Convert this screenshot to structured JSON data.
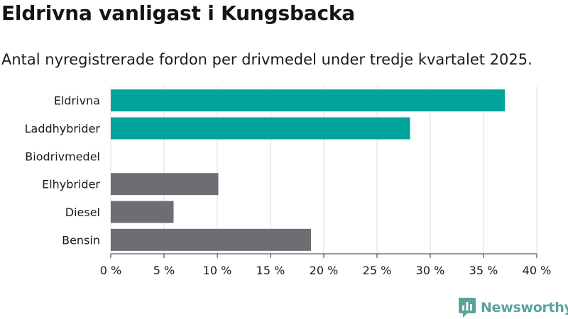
{
  "header": {
    "title": "Eldrivna vanligast i Kungsbacka",
    "subtitle": "Antal nyregistrerade fordon per drivmedel under tredje kvartalet 2025."
  },
  "brand": {
    "name": "Newsworthy",
    "icon": "newsworthy-logo-icon"
  },
  "colors": {
    "electric": "#00a49a",
    "fossil": "#6e6d73",
    "grid": "#dcdcdc",
    "axis": "#333333"
  },
  "chart_data": {
    "type": "bar",
    "orientation": "horizontal",
    "categories": [
      "Eldrivna",
      "Laddhybrider",
      "Biodrivmedel",
      "Elhybrider",
      "Diesel",
      "Bensin"
    ],
    "values": [
      37,
      28.1,
      0,
      10.1,
      5.9,
      18.8
    ],
    "bar_colors": [
      "#00a49a",
      "#00a49a",
      "#00a49a",
      "#6e6d73",
      "#6e6d73",
      "#6e6d73"
    ],
    "xlim": [
      0,
      40
    ],
    "x_ticks": [
      "0 %",
      "5 %",
      "10 %",
      "15 %",
      "20 %",
      "25 %",
      "30 %",
      "35 %",
      "40 %"
    ],
    "grid": true,
    "title": "Eldrivna vanligast i Kungsbacka",
    "xlabel": "",
    "ylabel": ""
  }
}
